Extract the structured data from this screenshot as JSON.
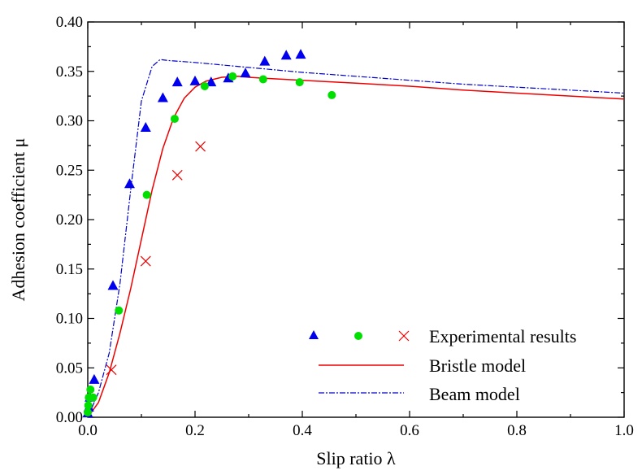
{
  "chart_data": {
    "type": "scatter",
    "title": "",
    "xlabel": "Slip ratio λ",
    "ylabel": "Adhesion coefficient  μ",
    "xlim": [
      0,
      1.0
    ],
    "ylim": [
      0,
      0.4
    ],
    "xticks": [
      "0.0",
      "0.2",
      "0.4",
      "0.6",
      "0.8",
      "1.0"
    ],
    "yticks": [
      "0.00",
      "0.05",
      "0.10",
      "0.15",
      "0.20",
      "0.25",
      "0.30",
      "0.35",
      "0.40"
    ],
    "grid": false,
    "legend_position": "bottom-right",
    "legend": {
      "experimental_label": "Experimental results",
      "bristle_label": "Bristle model",
      "beam_label": "Beam model"
    },
    "series": [
      {
        "kind": "scatter",
        "marker": "triangle",
        "color": "#0000ee",
        "x": [
          0.0,
          0.002,
          0.004,
          0.012,
          0.047,
          0.078,
          0.108,
          0.14,
          0.167,
          0.2,
          0.23,
          0.262,
          0.294,
          0.33,
          0.37,
          0.397
        ],
        "y": [
          0.004,
          0.01,
          0.02,
          0.038,
          0.133,
          0.236,
          0.293,
          0.323,
          0.339,
          0.34,
          0.339,
          0.343,
          0.348,
          0.36,
          0.366,
          0.367
        ]
      },
      {
        "kind": "scatter",
        "marker": "circle",
        "color": "#00e000",
        "x": [
          0.0,
          0.001,
          0.002,
          0.005,
          0.01,
          0.058,
          0.11,
          0.162,
          0.218,
          0.27,
          0.327,
          0.395,
          0.455
        ],
        "y": [
          0.005,
          0.012,
          0.02,
          0.028,
          0.02,
          0.108,
          0.225,
          0.302,
          0.335,
          0.345,
          0.342,
          0.339,
          0.326
        ]
      },
      {
        "kind": "scatter",
        "marker": "cross",
        "color": "#ee0000",
        "x": [
          0.044,
          0.108,
          0.167,
          0.21
        ],
        "y": [
          0.048,
          0.158,
          0.245,
          0.274
        ]
      },
      {
        "kind": "line",
        "style": "solid",
        "color": "#ee0000",
        "x": [
          0.0,
          0.02,
          0.04,
          0.06,
          0.08,
          0.1,
          0.12,
          0.14,
          0.16,
          0.18,
          0.2,
          0.22,
          0.25,
          0.28,
          0.3,
          0.33,
          0.4,
          0.5,
          0.6,
          0.7,
          0.8,
          0.9,
          1.0
        ],
        "y": [
          0.0,
          0.015,
          0.045,
          0.085,
          0.13,
          0.18,
          0.23,
          0.272,
          0.303,
          0.323,
          0.334,
          0.34,
          0.344,
          0.345,
          0.344,
          0.343,
          0.341,
          0.338,
          0.335,
          0.331,
          0.328,
          0.325,
          0.322
        ]
      },
      {
        "kind": "line",
        "style": "dashdot",
        "color": "#0000cc",
        "x": [
          0.0,
          0.02,
          0.04,
          0.06,
          0.08,
          0.1,
          0.12,
          0.135,
          0.15,
          0.2,
          0.3,
          0.4,
          0.5,
          0.6,
          0.7,
          0.8,
          0.9,
          1.0
        ],
        "y": [
          0.0,
          0.025,
          0.065,
          0.135,
          0.23,
          0.32,
          0.355,
          0.362,
          0.361,
          0.359,
          0.354,
          0.349,
          0.345,
          0.341,
          0.337,
          0.334,
          0.331,
          0.328
        ]
      }
    ]
  }
}
